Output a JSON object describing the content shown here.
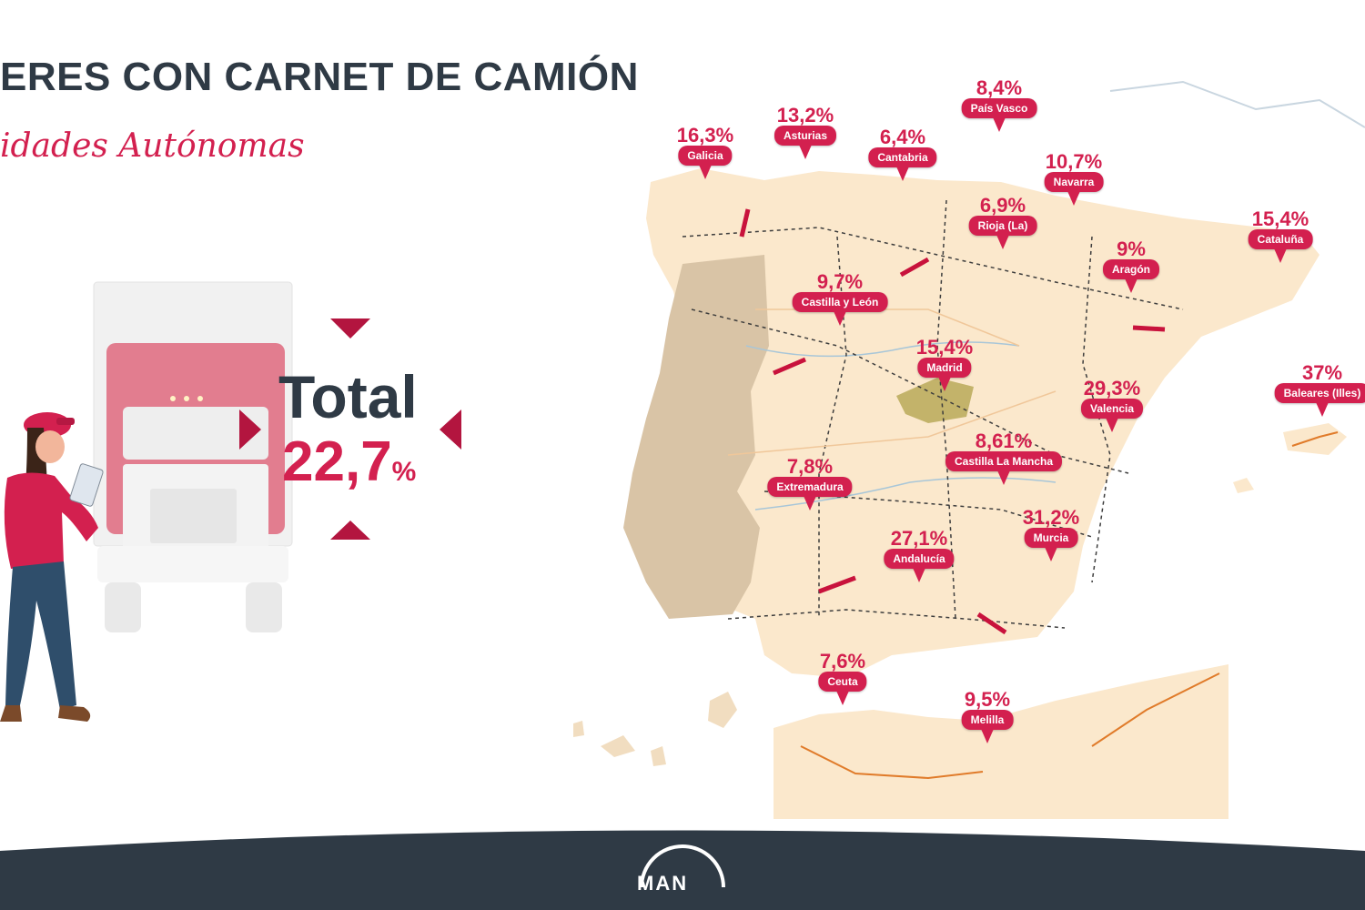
{
  "header": {
    "title": "ERES CON CARNET DE CAMIÓN",
    "subtitle": "idades Autónomas"
  },
  "summary": {
    "total_label": "Total",
    "total_value": "22,7",
    "total_unit": "%"
  },
  "regions": [
    {
      "name": "Galicia",
      "value": "16,3%"
    },
    {
      "name": "Asturias",
      "value": "13,2%"
    },
    {
      "name": "Cantabria",
      "value": "6,4%"
    },
    {
      "name": "País Vasco",
      "value": "8,4%"
    },
    {
      "name": "Navarra",
      "value": "10,7%"
    },
    {
      "name": "Rioja (La)",
      "value": "6,9%"
    },
    {
      "name": "Aragón",
      "value": "9%"
    },
    {
      "name": "Cataluña",
      "value": "15,4%"
    },
    {
      "name": "Castilla y León",
      "value": "9,7%"
    },
    {
      "name": "Madrid",
      "value": "15,4%"
    },
    {
      "name": "Valencia",
      "value": "29,3%"
    },
    {
      "name": "Baleares (Illes)",
      "value": "37%"
    },
    {
      "name": "Castilla La Mancha",
      "value": "8,61%"
    },
    {
      "name": "Extremadura",
      "value": "7,8%"
    },
    {
      "name": "Murcia",
      "value": "31,2%"
    },
    {
      "name": "Andalucía",
      "value": "27,1%"
    },
    {
      "name": "Ceuta",
      "value": "7,6%"
    },
    {
      "name": "Melilla",
      "value": "9,5%"
    }
  ],
  "footer": {
    "logo_text": "MAN"
  },
  "colors": {
    "accent": "#d3204f",
    "dark": "#2f3a45",
    "land": "#fbe8cc",
    "portugal": "#d9c4a6",
    "footer": "#2f3a45"
  }
}
